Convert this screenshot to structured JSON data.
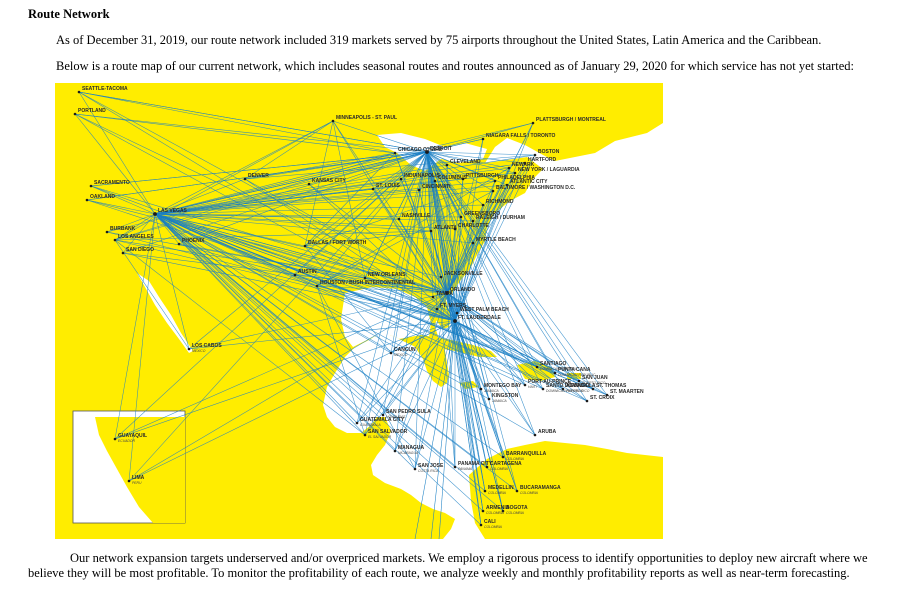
{
  "section_title": "Route Network",
  "paragraph_1": "As of December 31, 2019, our route network included 319 markets served by 75 airports throughout the United States, Latin America and the Caribbean.",
  "paragraph_2": "Below is a route map of our current network, which includes seasonal routes and routes announced as of January 29, 2020 for which service has not yet started:",
  "paragraph_3": "Our network expansion targets underserved and/or overpriced markets. We employ a rigorous process to identify opportunities to deploy new aircraft where we believe they will be most profitable. To monitor the profitability of each route, we analyze weekly and monthly profitability reports as well as near-term forecasting.",
  "map": {
    "colors": {
      "land": "#ffed00",
      "water": "#ffffff",
      "route": "#1a7fc4",
      "dot": "#1a1a1a",
      "border": "#ffffff"
    },
    "hubs": [
      "FT. LAUDERDALE",
      "ORLANDO",
      "DETROIT",
      "LAS VEGAS"
    ],
    "cities": [
      {
        "name": "SEATTLE-TACOMA",
        "sub": ""
      },
      {
        "name": "PORTLAND",
        "sub": ""
      },
      {
        "name": "SACRAMENTO",
        "sub": ""
      },
      {
        "name": "OAKLAND",
        "sub": ""
      },
      {
        "name": "LAS VEGAS",
        "sub": ""
      },
      {
        "name": "BURBANK",
        "sub": ""
      },
      {
        "name": "LOS ANGELES",
        "sub": ""
      },
      {
        "name": "SAN DIEGO",
        "sub": ""
      },
      {
        "name": "PHOENIX",
        "sub": ""
      },
      {
        "name": "DENVER",
        "sub": ""
      },
      {
        "name": "MINNEAPOLIS - ST. PAUL",
        "sub": ""
      },
      {
        "name": "KANSAS CITY",
        "sub": ""
      },
      {
        "name": "DALLAS / FORT WORTH",
        "sub": ""
      },
      {
        "name": "AUSTIN",
        "sub": ""
      },
      {
        "name": "HOUSTON / BUSH INTERCONTINENTAL",
        "sub": ""
      },
      {
        "name": "NEW ORLEANS",
        "sub": ""
      },
      {
        "name": "CHICAGO O'HARE",
        "sub": ""
      },
      {
        "name": "INDIANAPOLIS",
        "sub": ""
      },
      {
        "name": "ST. LOUIS",
        "sub": ""
      },
      {
        "name": "NASHVILLE",
        "sub": ""
      },
      {
        "name": "ATLANTA",
        "sub": ""
      },
      {
        "name": "DETROIT",
        "sub": ""
      },
      {
        "name": "CLEVELAND",
        "sub": ""
      },
      {
        "name": "COLUMBUS",
        "sub": ""
      },
      {
        "name": "PITTSBURGH",
        "sub": ""
      },
      {
        "name": "CINCINNATI",
        "sub": ""
      },
      {
        "name": "NIAGARA FALLS / TORONTO",
        "sub": ""
      },
      {
        "name": "PLATTSBURGH / MONTREAL",
        "sub": ""
      },
      {
        "name": "BOSTON",
        "sub": ""
      },
      {
        "name": "HARTFORD",
        "sub": ""
      },
      {
        "name": "NEWARK",
        "sub": ""
      },
      {
        "name": "NEW YORK / LAGUARDIA",
        "sub": ""
      },
      {
        "name": "ATLANTIC CITY",
        "sub": ""
      },
      {
        "name": "PHILADELPHIA",
        "sub": ""
      },
      {
        "name": "BALTIMORE / WASHINGTON D.C.",
        "sub": ""
      },
      {
        "name": "RICHMOND",
        "sub": ""
      },
      {
        "name": "RALEIGH / DURHAM",
        "sub": ""
      },
      {
        "name": "CHARLOTTE",
        "sub": ""
      },
      {
        "name": "GREENSBORO",
        "sub": ""
      },
      {
        "name": "MYRTLE BEACH",
        "sub": ""
      },
      {
        "name": "JACKSONVILLE",
        "sub": ""
      },
      {
        "name": "ORLANDO",
        "sub": ""
      },
      {
        "name": "TAMPA",
        "sub": ""
      },
      {
        "name": "FT. MYERS",
        "sub": ""
      },
      {
        "name": "WEST PALM BEACH",
        "sub": ""
      },
      {
        "name": "FT. LAUDERDALE",
        "sub": ""
      },
      {
        "name": "LOS CABOS",
        "sub": "MEXICO"
      },
      {
        "name": "CANCUN",
        "sub": "MEXICO"
      },
      {
        "name": "SAN PEDRO SULA",
        "sub": "HONDURAS"
      },
      {
        "name": "GUATEMALA CITY",
        "sub": "GUATEMALA"
      },
      {
        "name": "SAN SALVADOR",
        "sub": "EL SALVADOR"
      },
      {
        "name": "MANAGUA",
        "sub": "NICARAGUA"
      },
      {
        "name": "SAN JOSE",
        "sub": "COSTA RICA"
      },
      {
        "name": "PANAMA CITY",
        "sub": "PANAMA"
      },
      {
        "name": "MONTEGO BAY",
        "sub": "JAMAICA"
      },
      {
        "name": "KINGSTON",
        "sub": "JAMAICA"
      },
      {
        "name": "PORT-AU-PRINCE",
        "sub": "HAITI"
      },
      {
        "name": "SANTIAGO",
        "sub": "DOMINICAN REPUBLIC"
      },
      {
        "name": "PUNTA CANA",
        "sub": "DOMINICAN REPUBLIC"
      },
      {
        "name": "SANTO DOMINGO",
        "sub": "DOMINICAN REPUBLIC"
      },
      {
        "name": "AGUADILLA",
        "sub": "PUERTO RICO"
      },
      {
        "name": "SAN JUAN",
        "sub": "PUERTO RICO"
      },
      {
        "name": "ST. THOMAS",
        "sub": ""
      },
      {
        "name": "ST. CROIX",
        "sub": ""
      },
      {
        "name": "ST. MAARTEN",
        "sub": ""
      },
      {
        "name": "ARUBA",
        "sub": ""
      },
      {
        "name": "BARRANQUILLA",
        "sub": "COLOMBIA"
      },
      {
        "name": "CARTAGENA",
        "sub": "COLOMBIA"
      },
      {
        "name": "MEDELLIN",
        "sub": "COLOMBIA"
      },
      {
        "name": "BUCARAMANGA",
        "sub": "COLOMBIA"
      },
      {
        "name": "ARMENIA",
        "sub": "COLOMBIA"
      },
      {
        "name": "BOGOTA",
        "sub": "COLOMBIA"
      },
      {
        "name": "CALI",
        "sub": "COLOMBIA"
      },
      {
        "name": "GUAYAQUIL",
        "sub": "ECUADOR"
      },
      {
        "name": "LIMA",
        "sub": "PERU"
      }
    ]
  }
}
